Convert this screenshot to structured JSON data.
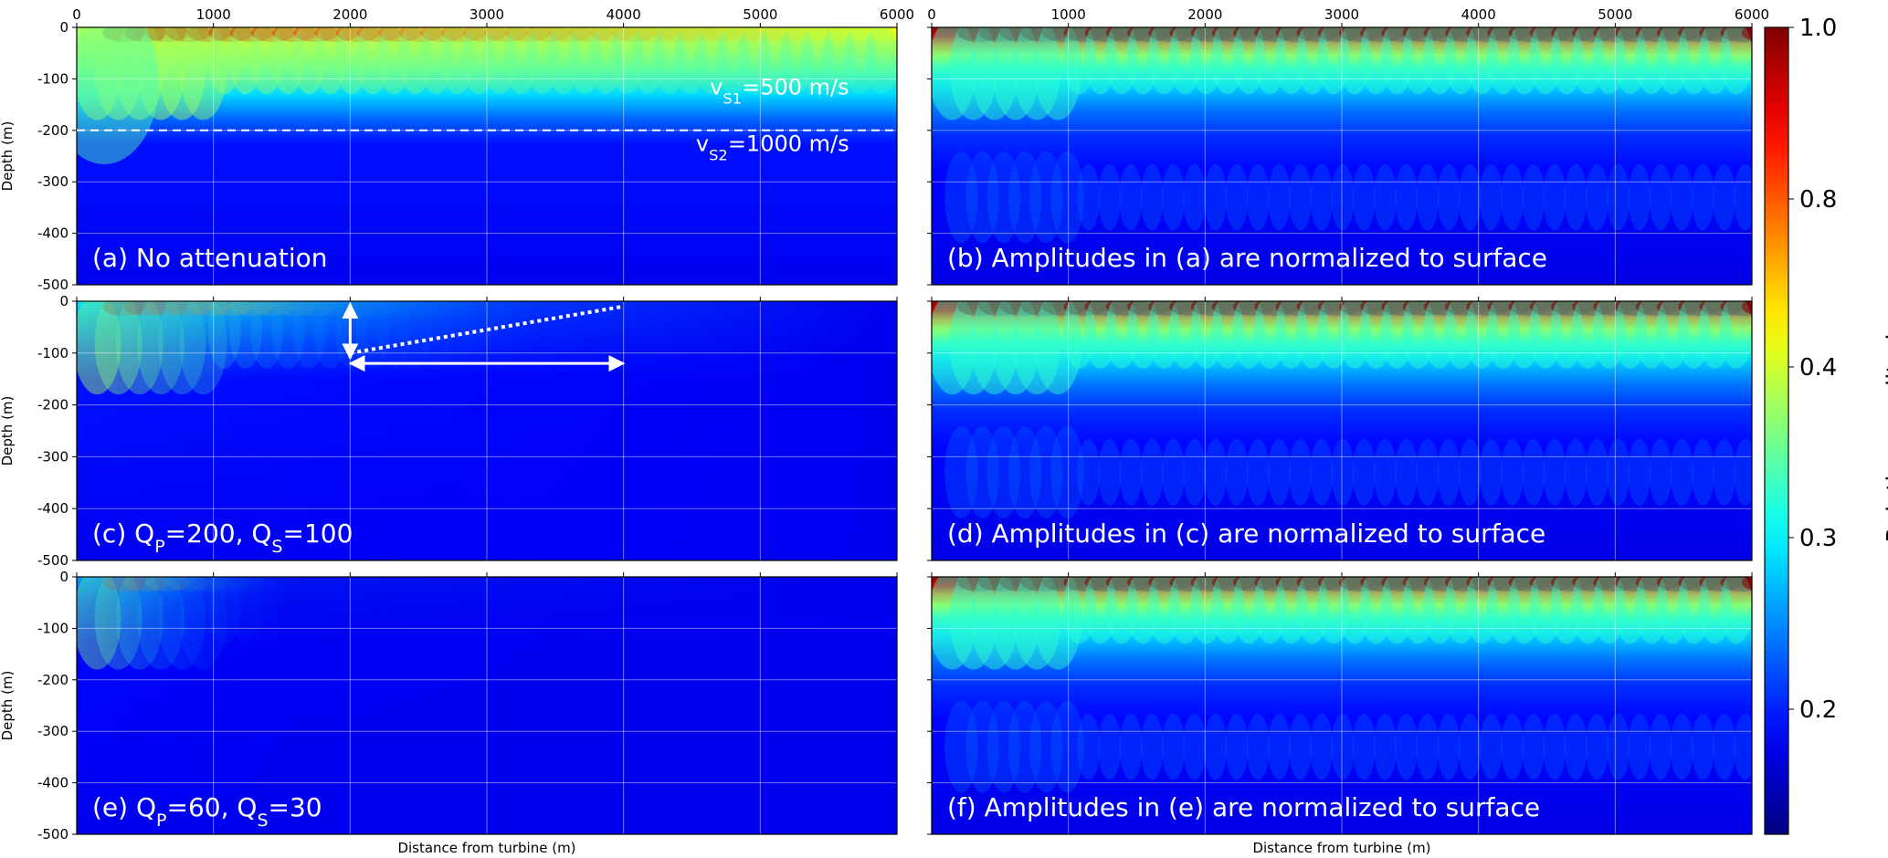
{
  "chart_data": [
    {
      "id": "a",
      "type": "heatmap",
      "annotation": "(a)  No attenuation",
      "xlim": [
        0,
        6000
      ],
      "ylim": [
        -500,
        0
      ],
      "xticks": [
        "0",
        "1000",
        "2000",
        "3000",
        "4000",
        "5000",
        "6000"
      ],
      "yticks": [
        "0",
        "-100",
        "-200",
        "-300",
        "-400",
        "-500"
      ],
      "ylabel": "Depth (m)",
      "xlabel": "",
      "layer_boundary_depth": -200,
      "layer_labels": [
        {
          "base": "v",
          "sub": "S1",
          "rest": "=500 m/s",
          "x": 5650,
          "y": -130
        },
        {
          "base": "v",
          "sub": "S2",
          "rest": "=1000 m/s",
          "x": 5650,
          "y": -240
        }
      ]
    },
    {
      "id": "b",
      "type": "heatmap",
      "annotation": "(b) Amplitudes in (a) are normalized to surface",
      "xlim": [
        0,
        6000
      ],
      "ylim": [
        -500,
        0
      ],
      "xticks": [
        "0",
        "1000",
        "2000",
        "3000",
        "4000",
        "5000",
        "6000"
      ],
      "xlabel": "",
      "ylabel": ""
    },
    {
      "id": "c",
      "type": "heatmap",
      "annotation_base": "(c)  Q",
      "annotation_parts": [
        {
          "text": "(c)  Q"
        },
        {
          "sub": "P"
        },
        {
          "text": "=200, Q"
        },
        {
          "sub": "S"
        },
        {
          "text": "=100"
        }
      ],
      "xlim": [
        0,
        6000
      ],
      "ylim": [
        -500,
        0
      ],
      "yticks": [
        "0",
        "-100",
        "-200",
        "-300",
        "-400",
        "-500"
      ],
      "ylabel": "Depth (m)",
      "xlabel": "",
      "arrows": [
        {
          "kind": "vertical",
          "x": 2000,
          "y1": -5,
          "y2": -110
        },
        {
          "kind": "horizontal",
          "x1": 2000,
          "x2": 4000,
          "y": -120
        },
        {
          "kind": "dotted",
          "x1": 2000,
          "y1": -100,
          "x2": 4000,
          "y2": -10
        }
      ]
    },
    {
      "id": "d",
      "type": "heatmap",
      "annotation": "(d) Amplitudes in (c) are normalized to surface",
      "xlim": [
        0,
        6000
      ],
      "ylim": [
        -500,
        0
      ],
      "xlabel": "",
      "ylabel": ""
    },
    {
      "id": "e",
      "type": "heatmap",
      "annotation_parts": [
        {
          "text": "(e)  Q"
        },
        {
          "sub": "P"
        },
        {
          "text": "=60, Q"
        },
        {
          "sub": "S"
        },
        {
          "text": "=30"
        }
      ],
      "xlim": [
        0,
        6000
      ],
      "ylim": [
        -500,
        0
      ],
      "yticks": [
        "0",
        "-100",
        "-200",
        "-300",
        "-400",
        "-500"
      ],
      "ylabel": "Depth (m)",
      "xlabel": "Distance from turbine (m)"
    },
    {
      "id": "f",
      "type": "heatmap",
      "annotation": "(f) Amplitudes in (e) are normalized to surface",
      "xlim": [
        0,
        6000
      ],
      "ylim": [
        -500,
        0
      ],
      "xlabel": "Distance from turbine (m)",
      "ylabel": ""
    }
  ],
  "colorbar": {
    "label": "Ralative amplitude",
    "ticks": [
      "1.0",
      "0.8",
      "0.4",
      "0.3",
      "0.2"
    ],
    "tick_values": [
      1.0,
      0.8,
      0.4,
      0.3,
      0.2
    ],
    "colormap": "jet"
  }
}
